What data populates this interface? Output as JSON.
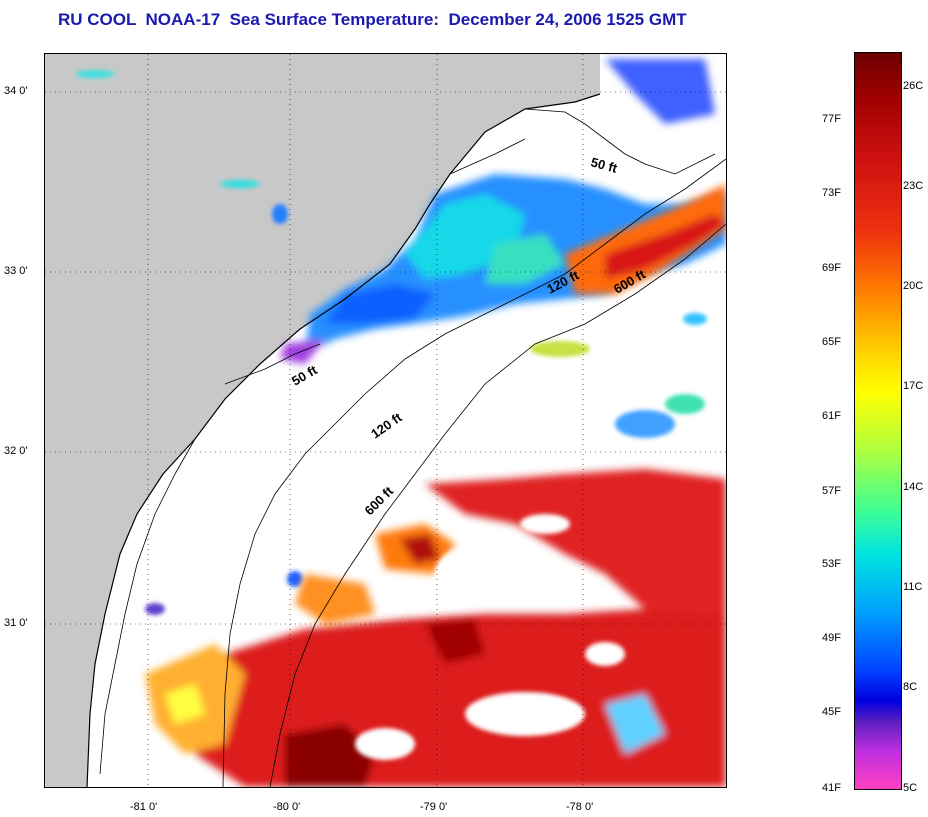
{
  "title": "RU COOL  NOAA-17  Sea Surface Temperature:  December 24, 2006 1525 GMT",
  "map": {
    "latitude_labels": [
      "34 0'",
      "33 0'",
      "32 0'",
      "31 0'"
    ],
    "longitude_labels": [
      "-81 0'",
      "-80 0'",
      "-79 0'",
      "-78 0'"
    ],
    "isobath_labels": [
      "50 ft",
      "120 ft",
      "600 ft",
      "50 ft",
      "120 ft",
      "600 ft"
    ],
    "land_color": "#c8c8c8",
    "cloud_color": "#ffffff"
  },
  "colorbar": {
    "fahrenheit_labels": [
      "77F",
      "73F",
      "69F",
      "65F",
      "61F",
      "57F",
      "53F",
      "49F",
      "45F",
      "41F"
    ],
    "celsius_labels": [
      "26C",
      "23C",
      "20C",
      "17C",
      "14C",
      "11C",
      "8C",
      "5C"
    ]
  }
}
